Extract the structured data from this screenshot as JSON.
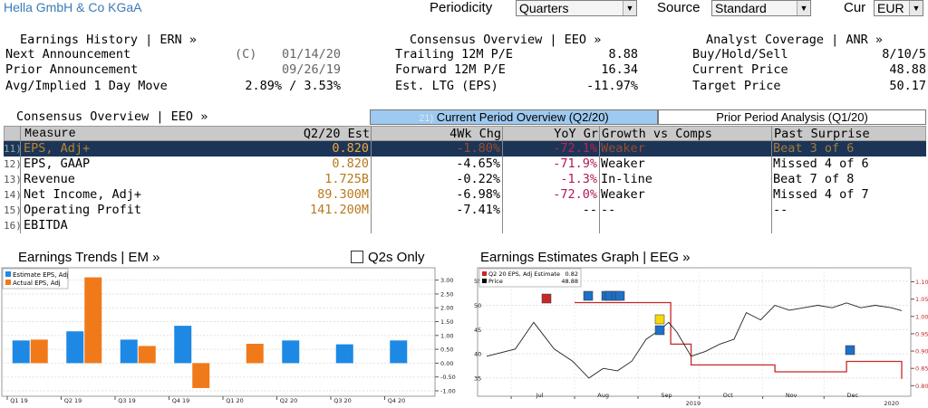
{
  "header": {
    "company": "Hella GmbH & Co KGaA",
    "periodicity_label": "Periodicity",
    "periodicity_value": "Quarters",
    "source_label": "Source",
    "source_value": "Standard",
    "cur_label": "Cur",
    "cur_value": "EUR"
  },
  "earnings_history": {
    "title": "Earnings History | ERN »",
    "rows": [
      {
        "label": "Next Announcement",
        "prefix": "(C)",
        "value": "01/14/20"
      },
      {
        "label": "Prior Announcement",
        "prefix": "",
        "value": "09/26/19"
      },
      {
        "label": "Avg/Implied 1 Day Move",
        "prefix": "",
        "value": "2.89% / 3.53%"
      }
    ]
  },
  "consensus_overview_top": {
    "title": "Consensus Overview | EEO »",
    "rows": [
      {
        "label": "Trailing 12M P/E",
        "value": "8.88"
      },
      {
        "label": "Forward 12M P/E",
        "value": "16.34"
      },
      {
        "label": "Est. LTG (EPS)",
        "value": "-11.97%"
      }
    ]
  },
  "analyst_coverage": {
    "title": "Analyst Coverage | ANR »",
    "rows": [
      {
        "label": "Buy/Hold/Sell",
        "value": "8/10/5"
      },
      {
        "label": "Current Price",
        "value": "48.88"
      },
      {
        "label": "Target Price",
        "value": "50.17"
      }
    ]
  },
  "consensus_table": {
    "title": "Consensus Overview | EEO »",
    "tab_current_num": "21)",
    "tab_current": "Current Period Overview (Q2/20)",
    "tab_prior": "Prior Period Analysis (Q1/20)",
    "columns": [
      "Measure",
      "Q2/20 Est",
      "4Wk Chg",
      "YoY Gr",
      "Growth vs Comps",
      "Past Surprise"
    ],
    "rows": [
      {
        "num": "11)",
        "measure": "EPS, Adj+",
        "est": "0.820",
        "chg": "-1.80%",
        "yoy": "-72.1%",
        "comps": "Weaker",
        "surprise": "Beat 3 of 6",
        "selected": true
      },
      {
        "num": "12)",
        "measure": "EPS, GAAP",
        "est": "0.820",
        "chg": "-4.65%",
        "yoy": "-71.9%",
        "comps": "Weaker",
        "surprise": "Missed 4 of 6",
        "selected": false
      },
      {
        "num": "13)",
        "measure": "Revenue",
        "est": "1.725B",
        "chg": "-0.22%",
        "yoy": "-1.3%",
        "comps": "In-line",
        "surprise": "Beat 7 of 8",
        "selected": false
      },
      {
        "num": "14)",
        "measure": "Net Income, Adj+",
        "est": "89.300M",
        "chg": "-6.98%",
        "yoy": "-72.0%",
        "comps": "Weaker",
        "surprise": "Missed 4 of 7",
        "selected": false
      },
      {
        "num": "15)",
        "measure": "Operating Profit",
        "est": "141.200M",
        "chg": "-7.41%",
        "yoy": "--",
        "comps": "--",
        "surprise": "--",
        "selected": false
      },
      {
        "num": "16)",
        "measure": "EBITDA",
        "est": "",
        "chg": "",
        "yoy": "",
        "comps": "",
        "surprise": "",
        "selected": false
      }
    ]
  },
  "earnings_trends": {
    "title": "Earnings Trends | EM »",
    "checkbox_label": "Q2s Only"
  },
  "earnings_graph": {
    "title": "Earnings Estimates Graph | EEG »"
  },
  "colors": {
    "blue_accent": "#1e88e5",
    "orange_accent": "#f07a1a",
    "selected_row": "#1c3557",
    "tab_active": "#9ec9f0",
    "estimate_line": "#c62828"
  },
  "chart_data": [
    {
      "type": "bar",
      "title": "Earnings Trends",
      "categories": [
        "Q1 19",
        "Q2 19",
        "Q3 19",
        "Q4 19",
        "Q1 20",
        "Q2 20",
        "Q3 20",
        "Q4 20"
      ],
      "series": [
        {
          "name": "Estimate EPS, Adj",
          "color": "#1e88e5",
          "values": [
            0.82,
            1.15,
            0.85,
            1.35,
            null,
            0.82,
            0.68,
            0.82
          ]
        },
        {
          "name": "Actual EPS, Adj",
          "color": "#f07a1a",
          "values": [
            0.85,
            3.1,
            0.62,
            -0.9,
            0.7,
            null,
            null,
            null
          ]
        }
      ],
      "yticks": [
        "3.00",
        "2.50",
        "2.00",
        "1.50",
        "1.00",
        "0.50",
        "0.00",
        "-0.50",
        "-1.00"
      ],
      "ylim": [
        -1.0,
        3.25
      ],
      "legend": "top-left"
    },
    {
      "type": "line",
      "title": "Earnings Estimates Graph",
      "legend_entries": [
        {
          "name": "Q2 20 EPS, Adj Estimate",
          "value": "0.82",
          "color": "#c62828"
        },
        {
          "name": "Price",
          "value": "48.88",
          "color": "#000000"
        }
      ],
      "x_labels": [
        "Jul",
        "Aug",
        "Sep",
        "Oct",
        "Nov",
        "Dec"
      ],
      "x_years": [
        "2019",
        "2020"
      ],
      "left_axis": {
        "ticks": [
          "55",
          "50",
          "45",
          "40",
          "35"
        ],
        "range": [
          32,
          57
        ]
      },
      "right_axis": {
        "ticks": [
          "1.10",
          "1.05",
          "1.00",
          "0.95",
          "0.90",
          "0.85",
          "0.80"
        ],
        "range": [
          0.78,
          1.13
        ]
      },
      "price_series": [
        {
          "x": "Jun 19",
          "y": 39.5
        },
        {
          "x": "Jul 03",
          "y": 41
        },
        {
          "x": "Jul 12",
          "y": 46.5
        },
        {
          "x": "Jul 22",
          "y": 41
        },
        {
          "x": "Jul 31",
          "y": 38.5
        },
        {
          "x": "Aug 08",
          "y": 35
        },
        {
          "x": "Aug 15",
          "y": 37
        },
        {
          "x": "Aug 22",
          "y": 36.5
        },
        {
          "x": "Aug 29",
          "y": 38.5
        },
        {
          "x": "Sep 05",
          "y": 43
        },
        {
          "x": "Sep 12",
          "y": 45
        },
        {
          "x": "Sep 16",
          "y": 46.5
        },
        {
          "x": "Sep 20",
          "y": 44.5
        },
        {
          "x": "Sep 27",
          "y": 39.5
        },
        {
          "x": "Oct 04",
          "y": 40.5
        },
        {
          "x": "Oct 11",
          "y": 42
        },
        {
          "x": "Oct 18",
          "y": 43
        },
        {
          "x": "Oct 24",
          "y": 48.5
        },
        {
          "x": "Oct 31",
          "y": 47
        },
        {
          "x": "Nov 07",
          "y": 50
        },
        {
          "x": "Nov 14",
          "y": 49
        },
        {
          "x": "Nov 21",
          "y": 49.5
        },
        {
          "x": "Nov 28",
          "y": 50
        },
        {
          "x": "Dec 05",
          "y": 49.5
        },
        {
          "x": "Dec 12",
          "y": 50.5
        },
        {
          "x": "Dec 19",
          "y": 49.5
        },
        {
          "x": "Dec 26",
          "y": 50
        },
        {
          "x": "Jan 03",
          "y": 49.5
        },
        {
          "x": "Jan 08",
          "y": 48.9
        }
      ],
      "estimate_series": [
        {
          "x": "Aug 01",
          "y": 1.04
        },
        {
          "x": "Sep 17",
          "y": 1.04
        },
        {
          "x": "Sep 17",
          "y": 0.92
        },
        {
          "x": "Sep 27",
          "y": 0.92
        },
        {
          "x": "Sep 27",
          "y": 0.86
        },
        {
          "x": "Nov 07",
          "y": 0.86
        },
        {
          "x": "Nov 07",
          "y": 0.84
        },
        {
          "x": "Dec 12",
          "y": 0.84
        },
        {
          "x": "Dec 12",
          "y": 0.87
        },
        {
          "x": "Jan 08",
          "y": 0.87
        },
        {
          "x": "Jan 08",
          "y": 0.82
        }
      ]
    }
  ]
}
